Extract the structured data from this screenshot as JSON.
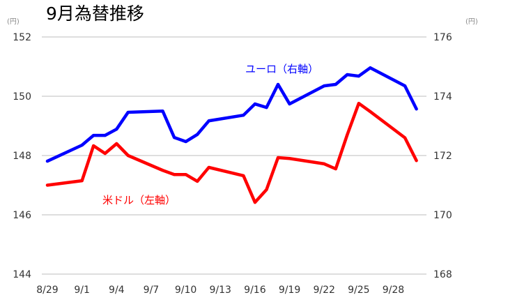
{
  "chart_data": {
    "type": "line",
    "title": "9月為替推移",
    "left_unit": "(円)",
    "right_unit": "(円)",
    "left_ylim": [
      144,
      152
    ],
    "right_ylim": [
      168,
      176
    ],
    "left_ticks": [
      "144",
      "146",
      "148",
      "150",
      "152"
    ],
    "right_ticks": [
      "168",
      "170",
      "172",
      "174",
      "176"
    ],
    "x_tick_labels": [
      "8/29",
      "9/1",
      "9/4",
      "9/7",
      "9/10",
      "9/13",
      "9/16",
      "9/19",
      "9/22",
      "9/25",
      "9/28"
    ],
    "x_tick_days": [
      0,
      3,
      6,
      9,
      12,
      15,
      18,
      21,
      24,
      27,
      30
    ],
    "x_days": [
      0,
      3,
      4,
      5,
      6,
      7,
      10,
      11,
      12,
      13,
      14,
      17,
      18,
      19,
      20,
      21,
      24,
      25,
      26,
      27,
      28,
      31,
      32
    ],
    "grid": true,
    "series": [
      {
        "name": "米ドル（左軸）",
        "axis": "left",
        "color": "#ff0000",
        "values": [
          147.0,
          147.15,
          148.33,
          148.07,
          148.4,
          148.0,
          147.5,
          147.36,
          147.36,
          147.13,
          147.6,
          147.32,
          146.42,
          146.85,
          147.93,
          147.9,
          147.72,
          147.55,
          148.7,
          149.76,
          149.48,
          148.6,
          147.83
        ]
      },
      {
        "name": "ユーロ（右軸）",
        "axis": "right",
        "color": "#0000ff",
        "values": [
          171.81,
          172.35,
          172.68,
          172.68,
          172.89,
          173.46,
          173.5,
          172.61,
          172.47,
          172.71,
          173.17,
          173.36,
          173.74,
          173.62,
          174.4,
          173.74,
          174.35,
          174.4,
          174.73,
          174.68,
          174.96,
          174.35,
          173.57
        ]
      }
    ]
  }
}
